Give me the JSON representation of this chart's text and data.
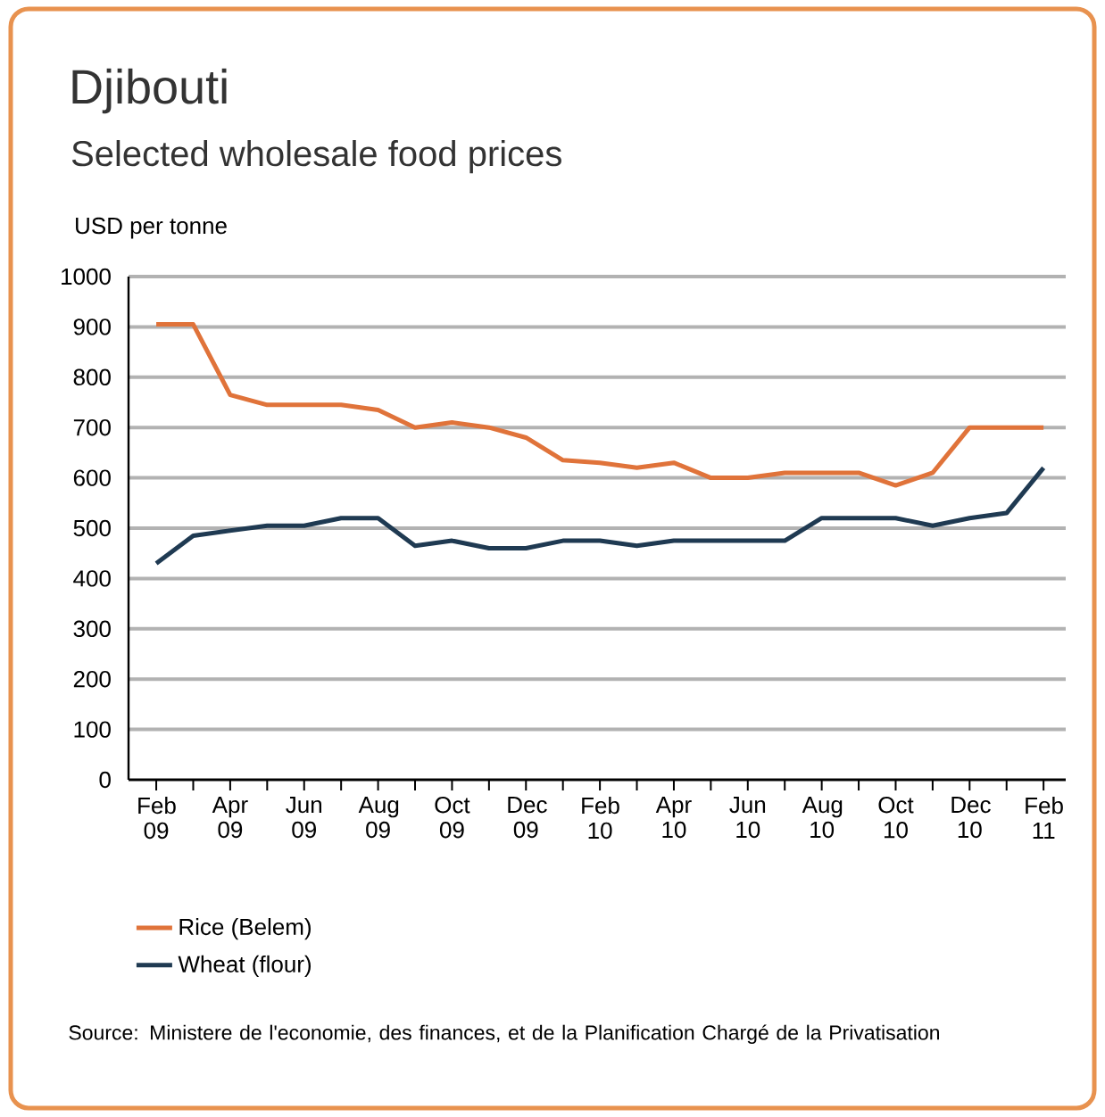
{
  "chart_data": {
    "type": "line",
    "title": "Djibouti",
    "subtitle": "Selected wholesale food prices",
    "ylabel": "USD per tonne",
    "categories": [
      "Feb 09",
      null,
      "Apr 09",
      null,
      "Jun 09",
      null,
      "Aug 09",
      null,
      "Oct 09",
      null,
      "Dec 09",
      null,
      "Feb 10",
      null,
      "Apr 10",
      null,
      "Jun 10",
      null,
      "Aug 10",
      null,
      "Oct 10",
      null,
      "Dec 10",
      null,
      "Feb 11"
    ],
    "series": [
      {
        "name": "Rice (Belem)",
        "color": "#e0733a",
        "values": [
          905,
          905,
          765,
          745,
          745,
          745,
          735,
          700,
          710,
          700,
          680,
          635,
          630,
          620,
          630,
          600,
          600,
          610,
          610,
          610,
          585,
          610,
          700,
          700,
          700
        ]
      },
      {
        "name": "Wheat (flour)",
        "color": "#1f3a52",
        "values": [
          430,
          485,
          495,
          505,
          505,
          520,
          520,
          465,
          475,
          460,
          460,
          475,
          475,
          465,
          475,
          475,
          475,
          475,
          520,
          520,
          520,
          505,
          520,
          530,
          620
        ]
      }
    ],
    "ylim": [
      0,
      1000
    ],
    "yticks": [
      0,
      100,
      200,
      300,
      400,
      500,
      600,
      700,
      800,
      900,
      1000
    ],
    "grid": "y",
    "legend": "bottom left",
    "line_style": "solid",
    "marker": "none",
    "annotations": [
      "Source: Ministere de l'economie, des finances, et de la Planification Chargé de la Privatisation"
    ]
  }
}
